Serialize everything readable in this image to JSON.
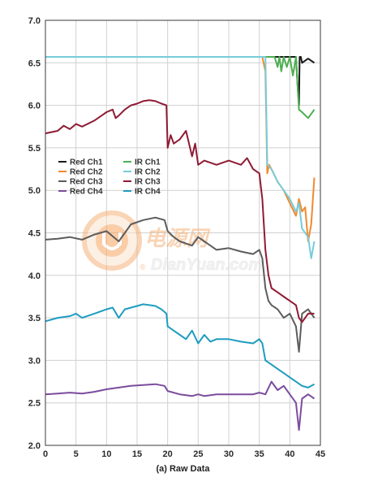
{
  "chart_data": {
    "type": "line",
    "title": "",
    "xlabel": "(a) Raw Data",
    "ylabel": "",
    "xlim": [
      0,
      45
    ],
    "ylim": [
      2.0,
      7.0
    ],
    "xticks": [
      "0",
      "5",
      "10",
      "15",
      "20",
      "25",
      "30",
      "35",
      "40",
      "45"
    ],
    "yticks": [
      "2.0",
      "2.5",
      "3.0",
      "3.5",
      "4.0",
      "4.5",
      "5.0",
      "5.5",
      "6.0",
      "6.5",
      "7.0"
    ],
    "grid": true,
    "legend_position": "middle-left",
    "series": [
      {
        "name": "Red Ch1",
        "color": "#1a1a1a",
        "x": [
          0,
          35,
          41,
          41.3,
          41.5,
          41.6,
          41.8,
          42,
          43,
          44
        ],
        "y": [
          6.57,
          6.57,
          6.57,
          6.2,
          6.0,
          6.57,
          6.57,
          6.5,
          6.55,
          6.5
        ]
      },
      {
        "name": "Red Ch2",
        "color": "#f08a2e",
        "x": [
          0,
          35.5,
          36,
          36.3,
          36.6,
          37,
          38,
          39,
          40,
          41,
          41.5,
          42,
          42.5,
          43,
          43.5,
          44
        ],
        "y": [
          6.57,
          6.57,
          6.4,
          5.2,
          5.3,
          5.25,
          5.1,
          5.0,
          4.85,
          4.7,
          4.9,
          4.75,
          4.8,
          4.4,
          4.6,
          5.15
        ]
      },
      {
        "name": "Red Ch3",
        "color": "#5c5c5c",
        "x": [
          0,
          2,
          4,
          6,
          8,
          10,
          12,
          14,
          16,
          18,
          19.5,
          20,
          21,
          22,
          24,
          25,
          26,
          27,
          28,
          30,
          32,
          34,
          35,
          35.5,
          36,
          36.5,
          37,
          38,
          39,
          40,
          41,
          41.5,
          42,
          43,
          44
        ],
        "y": [
          4.42,
          4.43,
          4.45,
          4.42,
          4.48,
          4.52,
          4.4,
          4.6,
          4.65,
          4.68,
          4.65,
          4.52,
          4.45,
          4.4,
          4.35,
          4.45,
          4.4,
          4.35,
          4.3,
          4.32,
          4.28,
          4.25,
          4.3,
          4.2,
          3.85,
          3.7,
          3.65,
          3.6,
          3.5,
          3.55,
          3.4,
          3.1,
          3.55,
          3.6,
          3.5
        ]
      },
      {
        "name": "Red Ch4",
        "color": "#7b4c9e",
        "x": [
          0,
          2,
          4,
          6,
          8,
          10,
          12,
          14,
          16,
          18,
          19.5,
          20,
          22,
          24,
          25,
          26,
          28,
          30,
          32,
          34,
          35,
          36,
          37,
          38,
          39,
          40,
          41,
          41.5,
          42,
          43,
          44
        ],
        "y": [
          2.6,
          2.61,
          2.62,
          2.61,
          2.63,
          2.66,
          2.68,
          2.7,
          2.71,
          2.72,
          2.7,
          2.64,
          2.6,
          2.58,
          2.6,
          2.58,
          2.6,
          2.6,
          2.6,
          2.6,
          2.62,
          2.6,
          2.75,
          2.65,
          2.7,
          2.6,
          2.5,
          2.18,
          2.55,
          2.6,
          2.55
        ]
      },
      {
        "name": "IR Ch1",
        "color": "#4caf50",
        "x": [
          0,
          37.5,
          38,
          38.3,
          38.6,
          39,
          39.5,
          40,
          40.5,
          41,
          41.5,
          42,
          43,
          44
        ],
        "y": [
          6.57,
          6.57,
          6.45,
          6.57,
          6.4,
          6.57,
          6.45,
          6.57,
          6.35,
          6.57,
          5.95,
          5.92,
          5.85,
          5.95
        ]
      },
      {
        "name": "IR Ch2",
        "color": "#76ccda",
        "x": [
          0,
          36,
          36.3,
          37,
          38,
          39,
          40,
          41,
          41.5,
          42,
          43,
          43.5,
          44
        ],
        "y": [
          6.57,
          6.57,
          5.3,
          5.25,
          5.1,
          5.0,
          4.9,
          4.75,
          4.85,
          4.55,
          4.45,
          4.2,
          4.4
        ]
      },
      {
        "name": "IR Ch3",
        "color": "#8e1b34",
        "x": [
          0,
          2,
          3,
          4,
          5,
          6,
          8,
          10,
          11,
          11.5,
          12,
          13,
          14,
          15,
          16,
          17,
          18,
          19,
          19.8,
          20,
          20.5,
          21,
          22,
          23,
          24,
          24.5,
          25,
          26,
          28,
          30,
          32,
          33,
          34,
          35,
          35.5,
          36,
          36.5,
          37,
          38,
          39,
          40,
          41,
          41.5,
          42,
          43,
          44
        ],
        "y": [
          5.67,
          5.7,
          5.76,
          5.72,
          5.78,
          5.75,
          5.82,
          5.92,
          5.95,
          5.85,
          5.88,
          5.95,
          6.0,
          6.02,
          6.05,
          6.06,
          6.05,
          6.02,
          6.0,
          5.5,
          5.65,
          5.55,
          5.6,
          5.7,
          5.4,
          5.55,
          5.3,
          5.35,
          5.3,
          5.35,
          5.3,
          5.38,
          5.25,
          5.2,
          4.9,
          4.3,
          4.0,
          3.85,
          3.8,
          3.75,
          3.7,
          3.65,
          3.5,
          3.45,
          3.55,
          3.55
        ]
      },
      {
        "name": "IR Ch4",
        "color": "#1e9cc0",
        "x": [
          0,
          2,
          4,
          5,
          6,
          8,
          10,
          11,
          12,
          13,
          14,
          15,
          16,
          17,
          18,
          19,
          19.8,
          20,
          21,
          22,
          23,
          24,
          25,
          26,
          27,
          28,
          30,
          32,
          34,
          35,
          35.5,
          36,
          37,
          38,
          39,
          40,
          41,
          42,
          43,
          44
        ],
        "y": [
          3.46,
          3.5,
          3.52,
          3.55,
          3.5,
          3.55,
          3.6,
          3.62,
          3.5,
          3.6,
          3.62,
          3.64,
          3.66,
          3.65,
          3.64,
          3.6,
          3.55,
          3.4,
          3.35,
          3.3,
          3.25,
          3.35,
          3.2,
          3.3,
          3.22,
          3.25,
          3.25,
          3.22,
          3.2,
          3.25,
          3.2,
          3.0,
          2.95,
          2.9,
          2.85,
          2.8,
          2.75,
          2.7,
          2.68,
          2.72
        ]
      }
    ]
  },
  "watermark": {
    "cn_text": "电源网",
    "en_text": "DianYuan.com",
    "registered": "®"
  }
}
